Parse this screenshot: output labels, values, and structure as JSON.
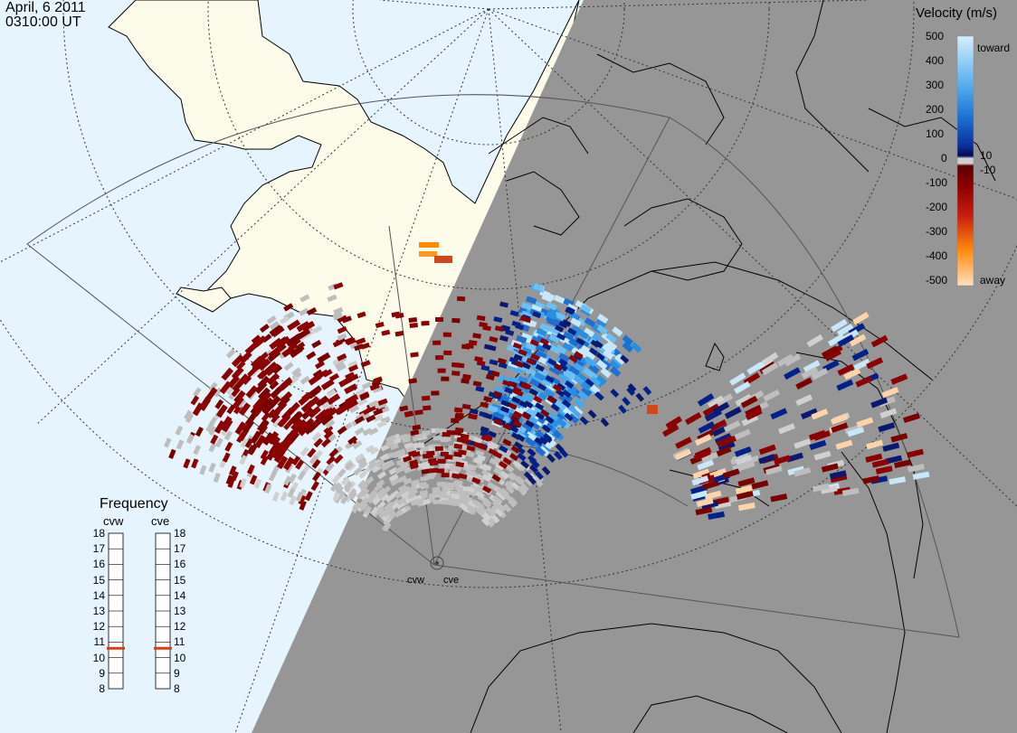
{
  "header": {
    "date": "April, 6 2011",
    "time": "0310:00 UT"
  },
  "legend": {
    "title": "Velocity (m/s)",
    "ticks": [
      "500",
      "400",
      "300",
      "200",
      "100",
      "10",
      "0",
      "-10",
      "-100",
      "-200",
      "-300",
      "-400",
      "-500"
    ],
    "toward_label": "toward",
    "away_label": "away",
    "colors": {
      "toward_light": "#c8e8fa",
      "toward_mid": "#2a8de0",
      "toward_dark": "#00208a",
      "ground_scatter": "#bebebe",
      "away_dark": "#8b0000",
      "away_mid": "#d2461a",
      "away_light": "#ffd4a8"
    }
  },
  "frequency": {
    "title": "Frequency",
    "radars": [
      {
        "name": "cvw",
        "freq_mhz": 10.6
      },
      {
        "name": "cve",
        "freq_mhz": 10.6
      }
    ],
    "scale": [
      "18",
      "17",
      "16",
      "15",
      "14",
      "13",
      "12",
      "11",
      "10",
      "9",
      "8"
    ]
  },
  "sites": [
    {
      "label": "cvw"
    },
    {
      "label": "cve"
    }
  ],
  "map_colors": {
    "ocean_day": "#e6f5fd",
    "land_day": "#fdfbea",
    "night": "#969696",
    "coastline": "#000000",
    "fov_outline": "#555555",
    "indicator": "#e03c10"
  }
}
